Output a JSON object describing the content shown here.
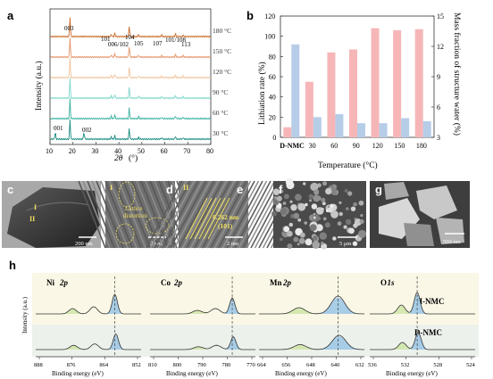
{
  "panels": {
    "a": {
      "label": "a",
      "ylabel": "Intensity (a.u.)",
      "xlabel_main": "2θ",
      "xlabel_unit": "(°)",
      "xticks": [
        "10",
        "20",
        "30",
        "40",
        "50",
        "60",
        "70",
        "80"
      ],
      "peak_labels": [
        "003",
        "101",
        "006/102",
        "104",
        "105",
        "107",
        "101/108",
        "113",
        "001",
        "002"
      ],
      "traces": [
        {
          "label": "180 °C",
          "color": "#c96a2a"
        },
        {
          "label": "150 °C",
          "color": "#e4946a"
        },
        {
          "label": "120 °C",
          "color": "#f0c49e"
        },
        {
          "label": "90 °C",
          "color": "#7ed6cc"
        },
        {
          "label": "60 °C",
          "color": "#3ab0a0"
        },
        {
          "label": "30 °C",
          "color": "#1a8a80"
        }
      ]
    },
    "b": {
      "label": "b",
      "ylabel_left": "Lithiation rate (%)",
      "ylabel_right": "Mass fraction of structure water (%)",
      "xlabel": "Temperature (°C)",
      "left_ticks": [
        "0",
        "20",
        "40",
        "60",
        "80",
        "100",
        "120"
      ],
      "right_ticks": [
        "3",
        "6",
        "9",
        "12",
        "15"
      ],
      "colors": {
        "lithiation": "#f6b6b8",
        "water": "#b6cde8"
      }
    },
    "c": {
      "label": "c",
      "marker_1": "I",
      "marker_2": "II",
      "scale": "200 nm"
    },
    "d": {
      "label": "d",
      "marker": "I",
      "annotation_1": "Lattice",
      "annotation_2": "distortion",
      "scale": "2 nm"
    },
    "e": {
      "label": "e",
      "marker": "II",
      "d_spacing": "0.262 nm",
      "plane": "(101)",
      "scale": "2 nm"
    },
    "f": {
      "label": "f",
      "scale": "5 μm"
    },
    "g": {
      "label": "g",
      "scale": "500 nm"
    },
    "h": {
      "label": "h",
      "ylabel": "Intensity (a.u.)",
      "row_labels": [
        "H-NMC",
        "D-NMC"
      ],
      "xlabel": "Binding energy (eV)",
      "subpanels": [
        {
          "element": "Ni",
          "orbital": "2p",
          "ticks": [
            "888",
            "876",
            "864",
            "852"
          ]
        },
        {
          "element": "Co",
          "orbital": "2p",
          "ticks": [
            "810",
            "800",
            "790",
            "780",
            "770"
          ]
        },
        {
          "element": "Mn",
          "orbital": "2p",
          "ticks": [
            "664",
            "656",
            "648",
            "640",
            "632"
          ]
        },
        {
          "element": "O",
          "orbital": "1s",
          "ticks": [
            "536",
            "532",
            "528",
            "524"
          ]
        }
      ]
    }
  },
  "chart_data": [
    {
      "type": "line",
      "title": "",
      "xlabel": "2θ (°)",
      "ylabel": "Intensity (a.u.)",
      "xlim": [
        10,
        80
      ],
      "series": [
        {
          "name": "180 °C"
        },
        {
          "name": "150 °C"
        },
        {
          "name": "120 °C"
        },
        {
          "name": "90 °C"
        },
        {
          "name": "60 °C"
        },
        {
          "name": "30 °C"
        }
      ],
      "peaks_2theta": [
        18.7,
        36.7,
        38.2,
        44.5,
        48.6,
        58.6,
        64.6,
        68.0
      ],
      "peaks_30C": [
        12.3,
        24.8
      ]
    },
    {
      "type": "bar",
      "title": "",
      "xlabel": "Temperature (°C)",
      "categories": [
        "D-NMC",
        "30",
        "60",
        "90",
        "120",
        "150",
        "180"
      ],
      "series": [
        {
          "name": "",
          "axis": "left",
          "values": [
            10,
            55,
            84,
            87,
            108,
            106,
            107
          ]
        },
        {
          "name": "",
          "axis": "right",
          "values": [
            12.2,
            5.0,
            5.3,
            4.4,
            4.4,
            4.9,
            4.6
          ]
        }
      ],
      "ylim_left": [
        0,
        120
      ],
      "ylim_right": [
        3,
        15
      ],
      "ylabel_left": "Lithiation rate (%)",
      "ylabel_right": "Mass fraction of structure water (%)"
    }
  ]
}
